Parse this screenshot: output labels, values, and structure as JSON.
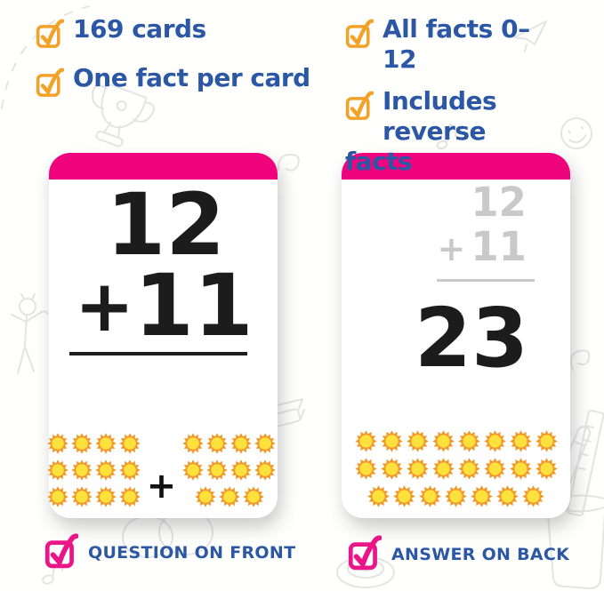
{
  "colors": {
    "blue_text": "#2b57a5",
    "orange_check": "#f3a228",
    "pink_check": "#ea1688",
    "card_header_pink": "#f0047e",
    "answer_gray": "#c9c9c9",
    "number_black": "#1c1c1c",
    "sun_ray": "#f0992b",
    "sun_center": "#ffe13d",
    "doodle_gray": "#e4e4e4"
  },
  "features": {
    "top_left": [
      {
        "label": "169 cards"
      },
      {
        "label": "One fact per card"
      }
    ],
    "top_right": [
      {
        "label": "All facts 0–12"
      },
      {
        "label": "Includes reverse facts"
      }
    ]
  },
  "front_card": {
    "addend_top": "12",
    "operator": "+",
    "addend_bottom": "11",
    "sun_group_left_rows": [
      4,
      4,
      4
    ],
    "sun_group_operator": "+",
    "sun_group_right_rows": [
      4,
      4,
      3
    ],
    "caption": "QUESTION ON FRONT"
  },
  "back_card": {
    "addend_top": "12",
    "operator": "+",
    "addend_bottom": "11",
    "answer": "23",
    "sun_rows": [
      8,
      8,
      7
    ],
    "caption": "ANSWER ON BACK"
  },
  "decorations": [
    "dashed-arc-doodle",
    "trophy-doodle",
    "smiley-face-doodle",
    "paper-plane-doodle",
    "music-note-doodle",
    "stick-figure-doodle",
    "squiggle-doodle",
    "eraser-doodle",
    "circles-doodle",
    "disc-doodle",
    "pencil-cup-doodle"
  ]
}
